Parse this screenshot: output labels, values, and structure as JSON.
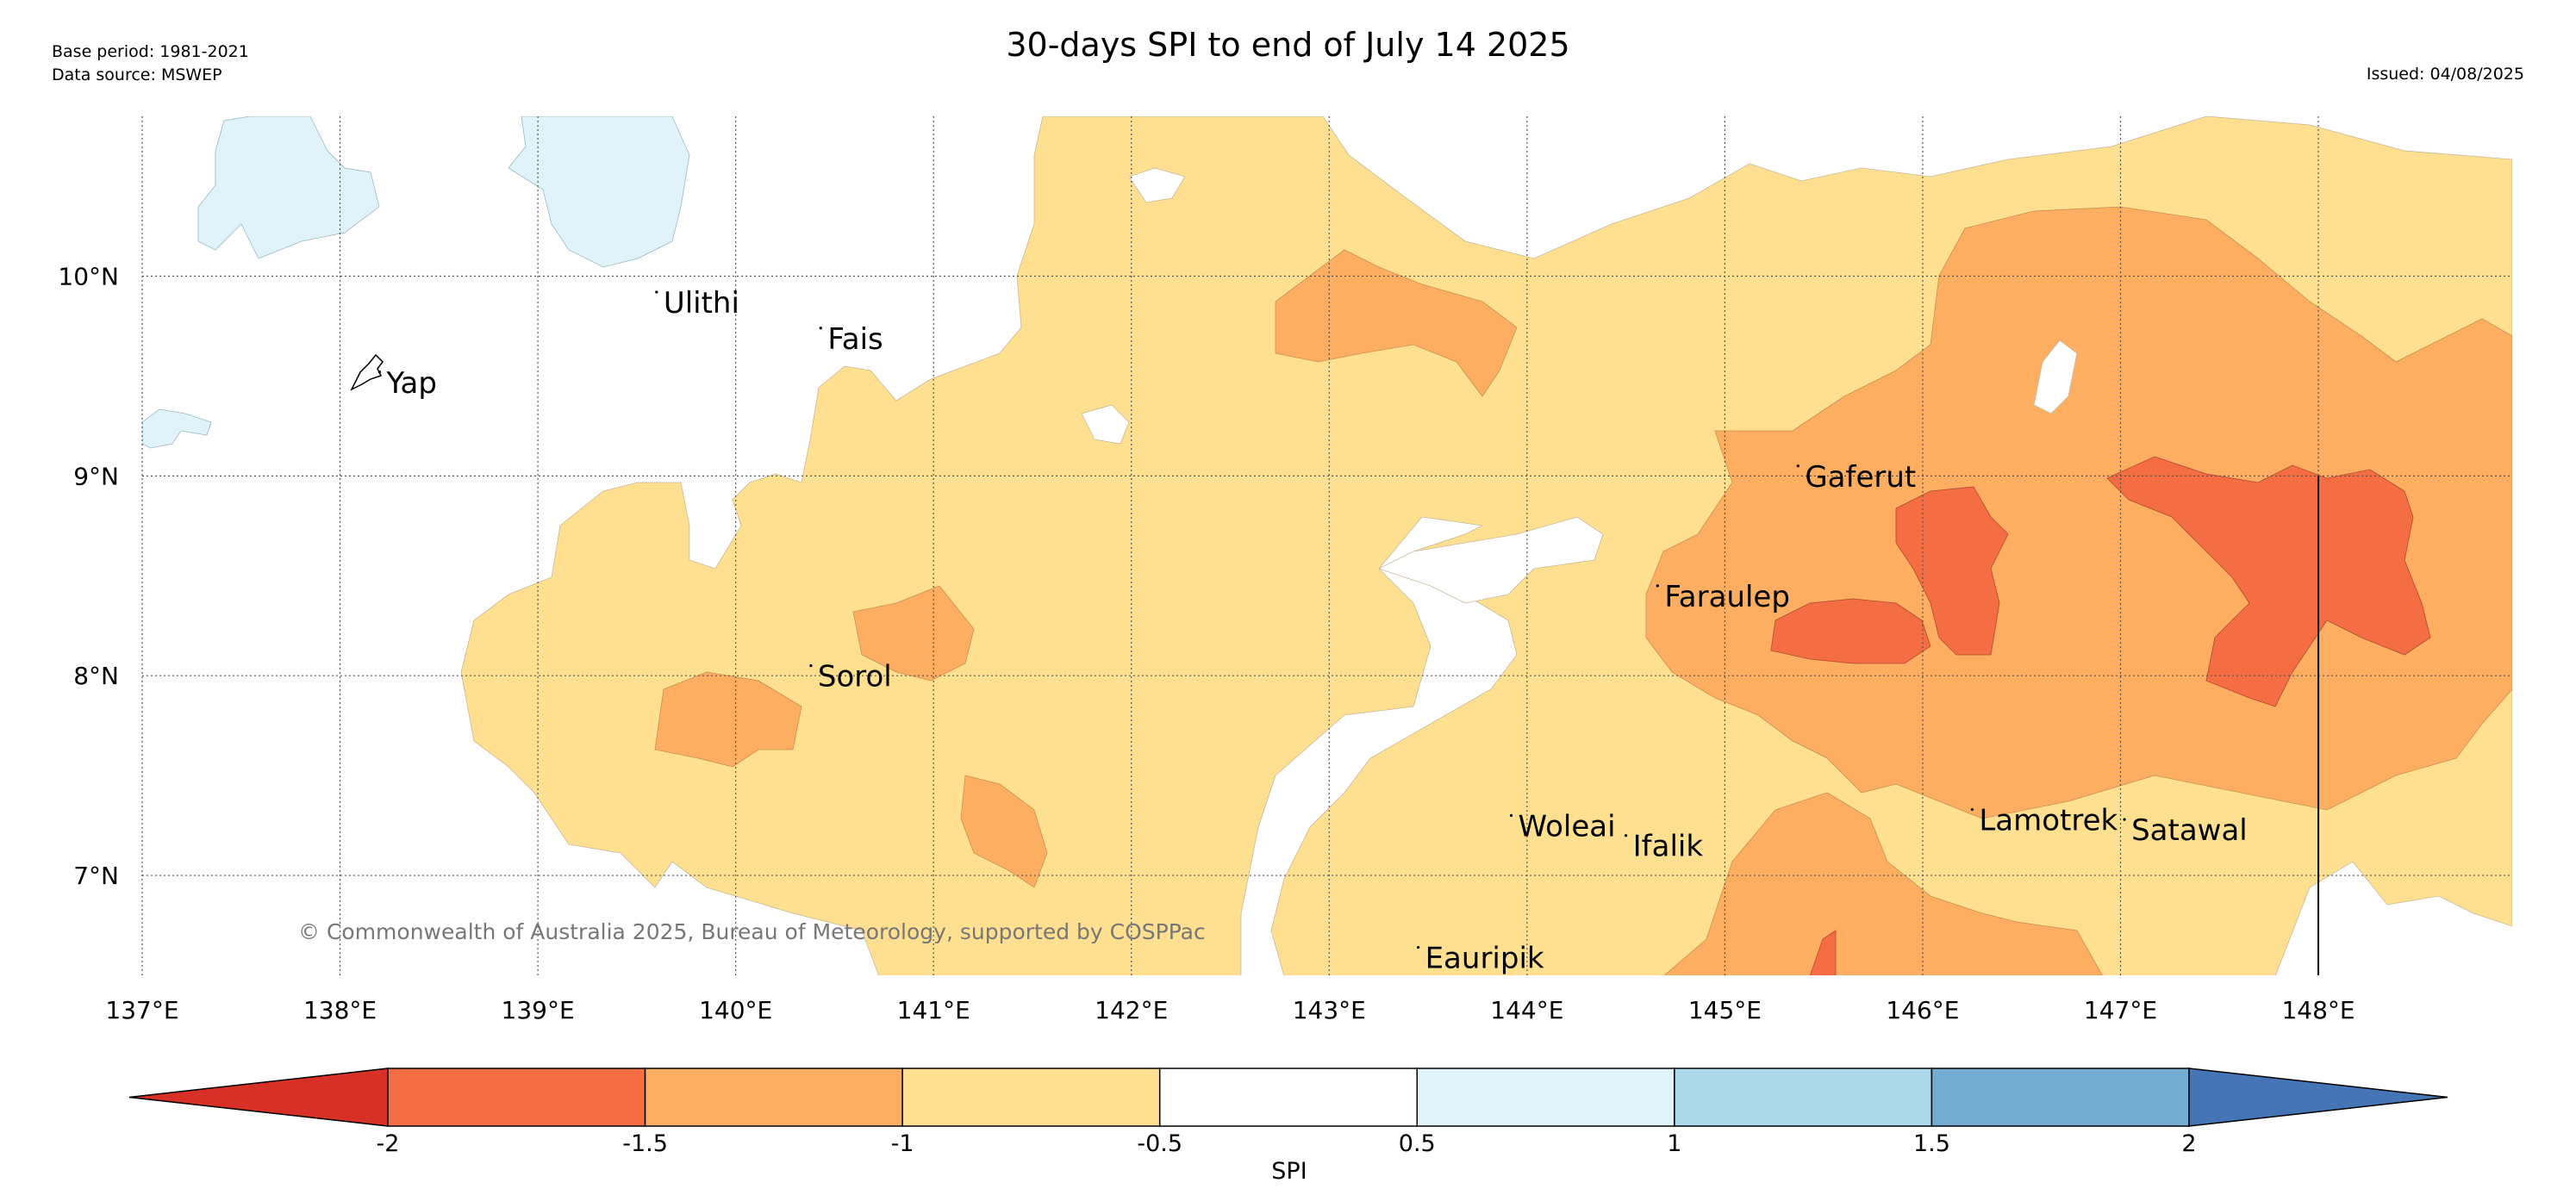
{
  "title": "30-days SPI to end of July 14 2025",
  "base_period": "Base period: 1981-2021",
  "data_source": "Data source: MSWEP",
  "issued": "Issued: 04/08/2025",
  "copyright": "© Commonwealth of Australia 2025, Bureau of Meteorology, supported by COSPPac",
  "extent": {
    "lon": [
      137.0,
      148.98
    ],
    "lat": [
      6.5,
      10.8
    ]
  },
  "lon_ticks": [
    {
      "v": 137,
      "label": "137°E"
    },
    {
      "v": 138,
      "label": "138°E"
    },
    {
      "v": 139,
      "label": "139°E"
    },
    {
      "v": 140,
      "label": "140°E"
    },
    {
      "v": 141,
      "label": "141°E"
    },
    {
      "v": 142,
      "label": "142°E"
    },
    {
      "v": 143,
      "label": "143°E"
    },
    {
      "v": 144,
      "label": "144°E"
    },
    {
      "v": 145,
      "label": "145°E"
    },
    {
      "v": 146,
      "label": "146°E"
    },
    {
      "v": 147,
      "label": "147°E"
    },
    {
      "v": 148,
      "label": "148°E"
    }
  ],
  "lat_ticks": [
    {
      "v": 10,
      "label": "10°N"
    },
    {
      "v": 9,
      "label": "9°N"
    },
    {
      "v": 8,
      "label": "8°N"
    },
    {
      "v": 7,
      "label": "7°N"
    }
  ],
  "places": [
    {
      "name": "Yap",
      "lon": 138.2,
      "lat": 9.52
    },
    {
      "name": "Ulithi",
      "lon": 139.6,
      "lat": 9.92
    },
    {
      "name": "Fais",
      "lon": 140.43,
      "lat": 9.74
    },
    {
      "name": "Gaferut",
      "lon": 145.37,
      "lat": 9.05
    },
    {
      "name": "Faraulep",
      "lon": 144.66,
      "lat": 8.45
    },
    {
      "name": "Sorol",
      "lon": 140.38,
      "lat": 8.05
    },
    {
      "name": "Woleai",
      "lon": 143.92,
      "lat": 7.3
    },
    {
      "name": "Ifalik",
      "lon": 144.5,
      "lat": 7.2
    },
    {
      "name": "Lamotrek",
      "lon": 146.25,
      "lat": 7.33
    },
    {
      "name": "Satawal",
      "lon": 147.02,
      "lat": 7.28
    },
    {
      "name": "Eauripik",
      "lon": 143.45,
      "lat": 6.64
    }
  ],
  "colorbar": {
    "label": "SPI",
    "ticks": [
      "-2",
      "-1.5",
      "-1",
      "-0.5",
      "0.5",
      "1",
      "1.5",
      "2"
    ],
    "colors": [
      "#d73027",
      "#f46d43",
      "#fdae61",
      "#fee090",
      "#ffffff",
      "#e0f3f8",
      "#abd9e9",
      "#74add1",
      "#4575b4"
    ]
  },
  "regions": [
    {
      "name": "dry-moderate-region",
      "class": "-1 to -0.5",
      "color": "#fee090"
    },
    {
      "name": "dry-severe-region",
      "class": "-1.5 to -1",
      "color": "#fdae61"
    },
    {
      "name": "dry-extreme-region",
      "class": "-2 to -1.5",
      "color": "#f46d43"
    },
    {
      "name": "wet-moderate-region",
      "class": "0.5 to 1",
      "color": "#e0f3f8"
    }
  ]
}
